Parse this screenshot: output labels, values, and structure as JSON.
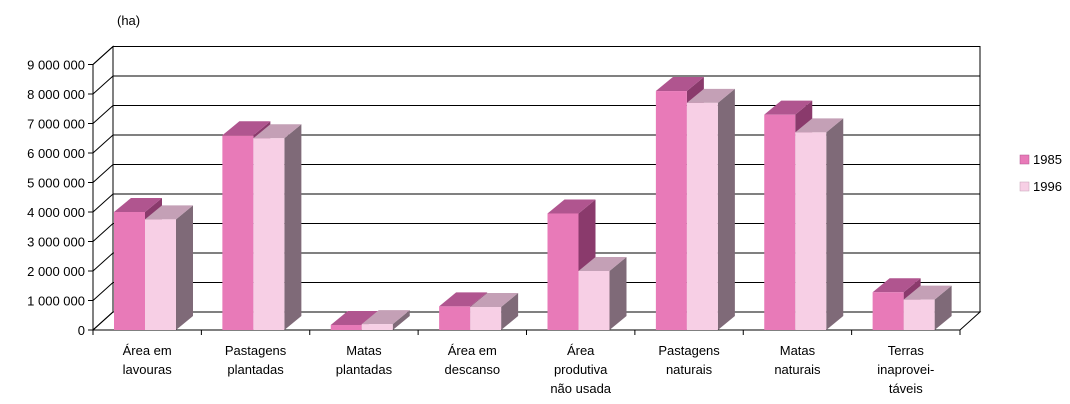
{
  "chart_data": {
    "type": "bar",
    "style": "3d-clustered",
    "unit_label": "(ha)",
    "categories": [
      [
        "Área em",
        "lavouras"
      ],
      [
        "Pastagens",
        "plantadas"
      ],
      [
        "Matas",
        "plantadas"
      ],
      [
        "Área em",
        "descanso"
      ],
      [
        "Área",
        "produtiva",
        "não usada"
      ],
      [
        "Pastagens",
        "naturais"
      ],
      [
        "Matas",
        "naturais"
      ],
      [
        "Terras",
        "inaprovei-",
        "táveis"
      ]
    ],
    "series": [
      {
        "name": "1985",
        "color": "#e87ab8",
        "top_color": "#b0558f",
        "side_color": "#8a3a6c",
        "values": [
          4000000,
          6600000,
          170000,
          800000,
          3950000,
          8100000,
          7300000,
          1280000
        ]
      },
      {
        "name": "1996",
        "color": "#f7cfe5",
        "top_color": "#c4a0b6",
        "side_color": "#7f6a78",
        "values": [
          3750000,
          6500000,
          200000,
          780000,
          2000000,
          7700000,
          6700000,
          1030000
        ]
      }
    ],
    "y_ticks": [
      "0",
      "1 000 000",
      "2 000 000",
      "3 000 000",
      "4 000 000",
      "5 000 000",
      "6 000 000",
      "7 000 000",
      "8 000 000",
      "9 000 000"
    ],
    "ylim": [
      0,
      9000000
    ],
    "grid": true,
    "legend_position": "right"
  }
}
